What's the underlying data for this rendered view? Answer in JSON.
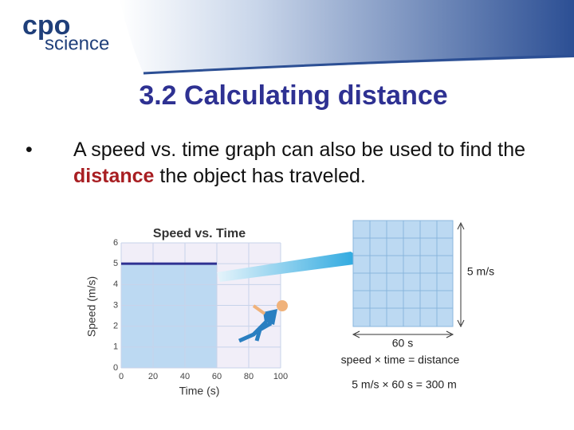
{
  "logo": {
    "top": "cpo",
    "bottom": "science"
  },
  "title": "3.2 Calculating distance",
  "bullet": {
    "marker": "•",
    "parts": [
      "A speed vs. time graph can also be used to find the ",
      "distance",
      " the object has traveled."
    ]
  },
  "chart_data": {
    "type": "line",
    "title": "Speed vs. Time",
    "x_label": "Time (s)",
    "y_label": "Speed (m/s)",
    "x": [
      0,
      60
    ],
    "values": [
      5,
      5
    ],
    "color": "#2e3192",
    "fill_color": "#bcd9f2",
    "xlim": [
      0,
      100
    ],
    "ylim": [
      0,
      6
    ],
    "xticks": [
      0,
      20,
      40,
      60,
      80,
      100
    ],
    "yticks": [
      0,
      1,
      2,
      3,
      4,
      5,
      6
    ],
    "grid": true
  },
  "diagram": {
    "height_label": "5 m/s",
    "width_label": "60 s",
    "formula": "speed × time = distance",
    "calculation": "5 m/s × 60 s = 300 m"
  }
}
